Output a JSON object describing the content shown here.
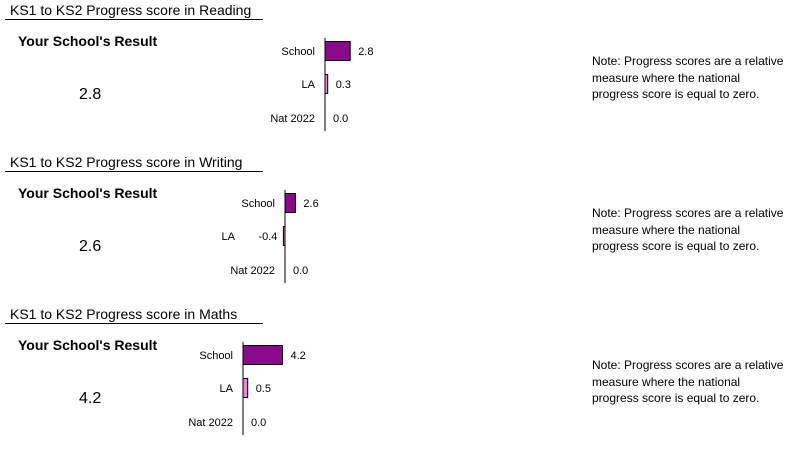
{
  "sections": [
    {
      "title": "KS1 to KS2 Progress score in Reading",
      "result_label": "Your School's Result",
      "result_value": "2.8",
      "note": " Note: Progress scores are a relative measure where the national progress score is equal to zero."
    },
    {
      "title": "KS1 to KS2 Progress score in Writing",
      "result_label": "Your School's Result",
      "result_value": "2.6",
      "note": " Note: Progress scores are a relative measure where the national progress score is equal to zero."
    },
    {
      "title": "KS1 to KS2 Progress score in Maths",
      "result_label": "Your School's Result",
      "result_value": "4.2",
      "note": " Note: Progress scores are a relative measure where the national progress score is equal to zero."
    }
  ],
  "colors": {
    "school_bar": "#8b0a8b",
    "la_bar": "#ee88d0",
    "bar_border": "#000000",
    "axis": "#000000"
  },
  "chart_data": [
    {
      "type": "bar",
      "orientation": "horizontal",
      "title": "KS1 to KS2 Progress score in Reading",
      "categories": [
        "School",
        "LA",
        "Nat 2022"
      ],
      "values": [
        2.8,
        0.3,
        0.0
      ],
      "value_labels": [
        "2.8",
        "0.3",
        "0.0"
      ],
      "grid": false,
      "xlabel": "",
      "ylabel": ""
    },
    {
      "type": "bar",
      "orientation": "horizontal",
      "title": "KS1 to KS2 Progress score in Writing",
      "categories": [
        "School",
        "LA",
        "Nat 2022"
      ],
      "values": [
        2.6,
        -0.4,
        0.0
      ],
      "value_labels": [
        "2.6",
        "-0.4",
        "0.0"
      ],
      "grid": false,
      "xlabel": "",
      "ylabel": ""
    },
    {
      "type": "bar",
      "orientation": "horizontal",
      "title": "KS1 to KS2 Progress score in Maths",
      "categories": [
        "School",
        "LA",
        "Nat 2022"
      ],
      "values": [
        4.2,
        0.5,
        0.0
      ],
      "value_labels": [
        "4.2",
        "0.5",
        "0.0"
      ],
      "grid": false,
      "xlabel": "",
      "ylabel": ""
    }
  ]
}
